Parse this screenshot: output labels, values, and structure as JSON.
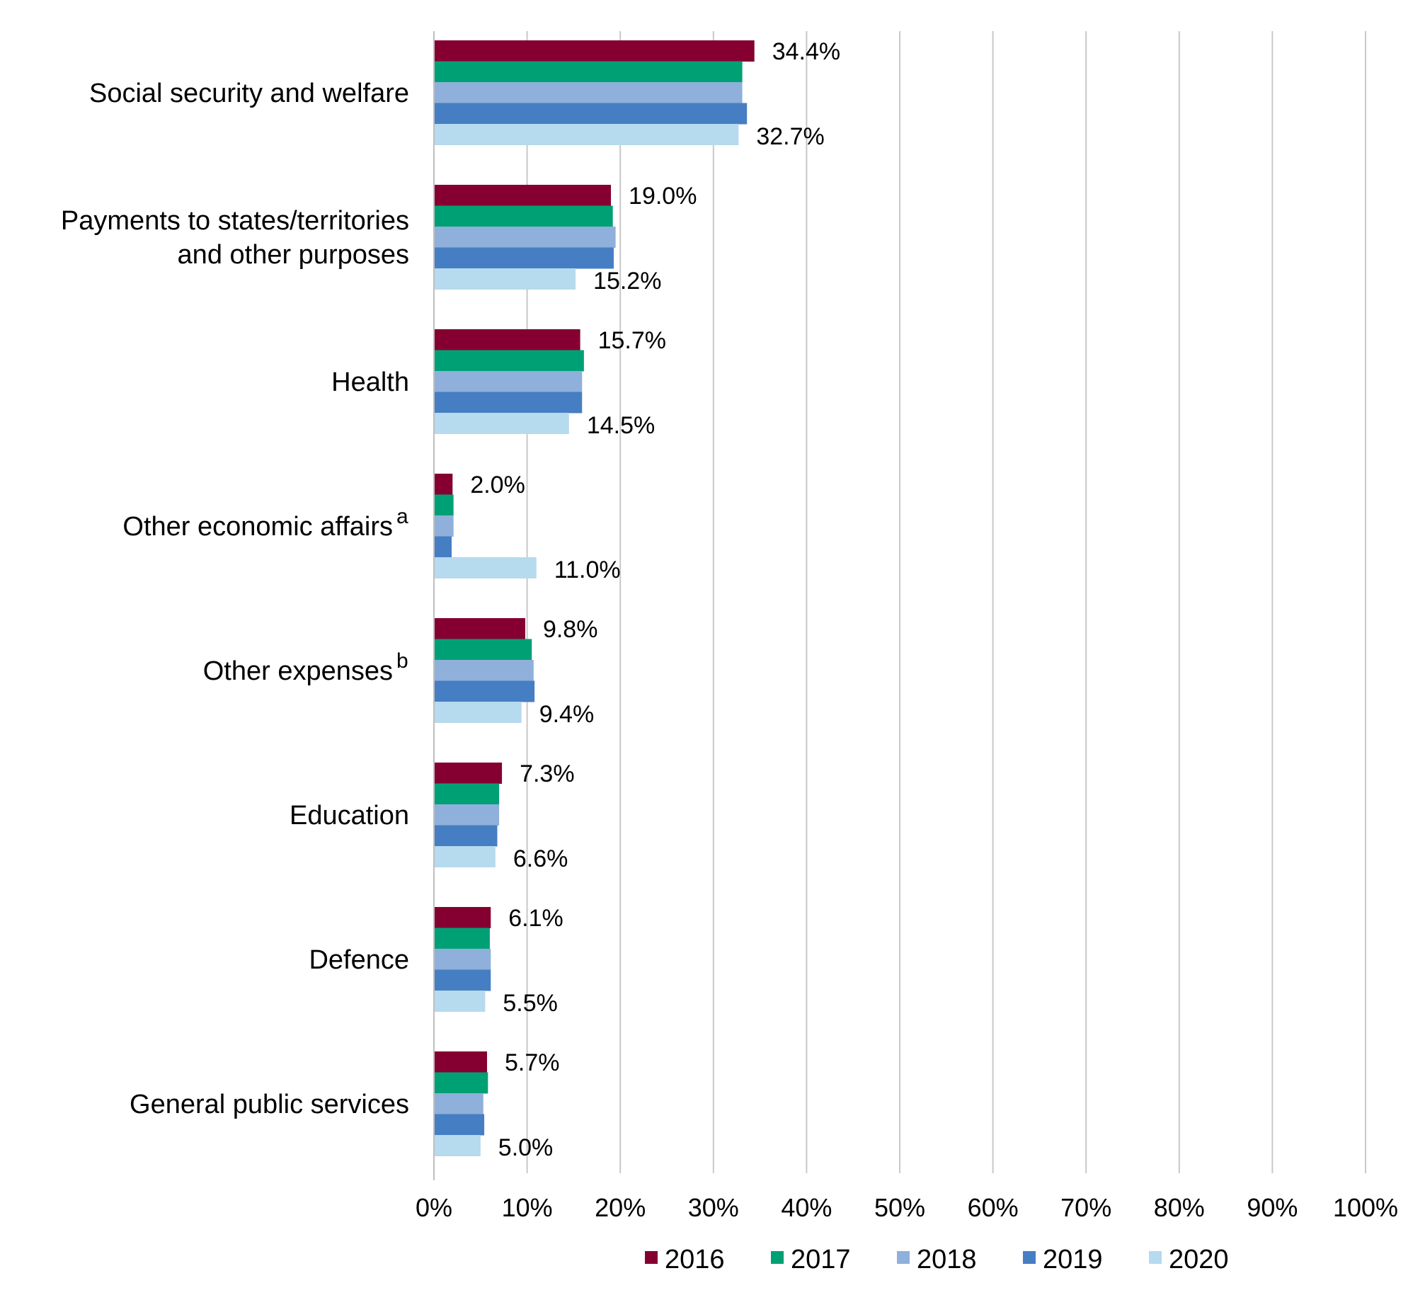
{
  "chart_data": {
    "type": "bar",
    "orientation": "horizontal",
    "categories": [
      {
        "lines": [
          "Social security and welfare"
        ],
        "superscript": ""
      },
      {
        "lines": [
          "Payments to states/territories",
          "and other purposes"
        ],
        "superscript": ""
      },
      {
        "lines": [
          "Health"
        ],
        "superscript": ""
      },
      {
        "lines": [
          "Other economic affairs"
        ],
        "superscript": "a"
      },
      {
        "lines": [
          "Other expenses"
        ],
        "superscript": "b"
      },
      {
        "lines": [
          "Education"
        ],
        "superscript": ""
      },
      {
        "lines": [
          "Defence"
        ],
        "superscript": ""
      },
      {
        "lines": [
          "General public services"
        ],
        "superscript": ""
      }
    ],
    "series": [
      {
        "name": "2016",
        "color": "#850030",
        "values": [
          34.4,
          19.0,
          15.7,
          2.0,
          9.8,
          7.3,
          6.1,
          5.7
        ]
      },
      {
        "name": "2017",
        "color": "#00A075",
        "values": [
          33.1,
          19.2,
          16.1,
          2.1,
          10.5,
          7.0,
          6.0,
          5.8
        ]
      },
      {
        "name": "2018",
        "color": "#8FB0DA",
        "values": [
          33.1,
          19.5,
          15.9,
          2.1,
          10.7,
          7.0,
          6.1,
          5.3
        ]
      },
      {
        "name": "2019",
        "color": "#467EC3",
        "values": [
          33.6,
          19.3,
          15.9,
          1.9,
          10.8,
          6.8,
          6.1,
          5.4
        ]
      },
      {
        "name": "2020",
        "color": "#B6DAEE",
        "values": [
          32.7,
          15.2,
          14.5,
          11.0,
          9.4,
          6.6,
          5.5,
          5.0
        ]
      }
    ],
    "data_labels": {
      "first": [
        "34.4%",
        "19.0%",
        "15.7%",
        "2.0%",
        "9.8%",
        "7.3%",
        "6.1%",
        "5.7%"
      ],
      "last": [
        "32.7%",
        "15.2%",
        "14.5%",
        "11.0%",
        "9.4%",
        "6.6%",
        "5.5%",
        "5.0%"
      ]
    },
    "xlim": [
      0,
      100
    ],
    "xticks": [
      0,
      10,
      20,
      30,
      40,
      50,
      60,
      70,
      80,
      90,
      100
    ],
    "xtick_labels": [
      "0%",
      "10%",
      "20%",
      "30%",
      "40%",
      "50%",
      "60%",
      "70%",
      "80%",
      "90%",
      "100%"
    ],
    "grid": "vertical",
    "legend_position": "bottom",
    "title": "",
    "xlabel": "",
    "ylabel": ""
  }
}
